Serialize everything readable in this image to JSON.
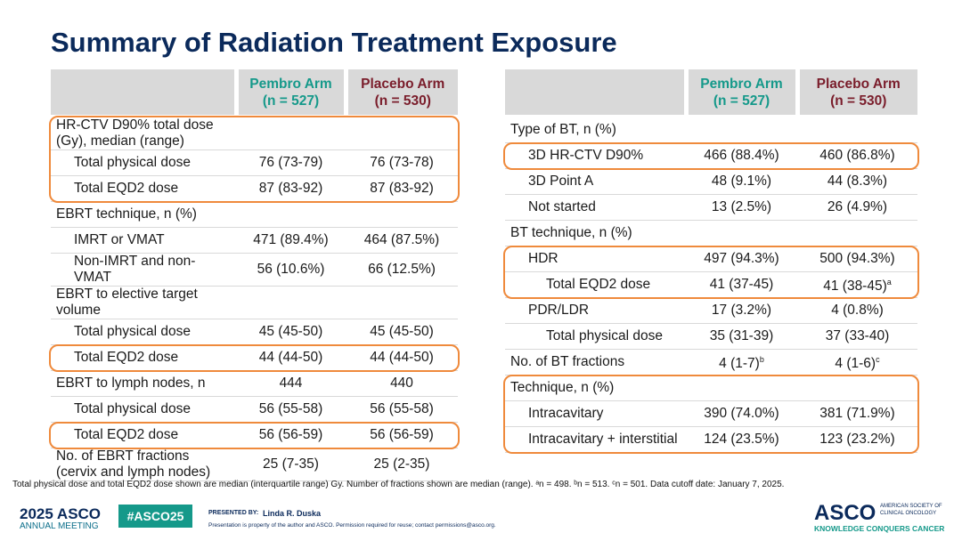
{
  "title": "Summary of Radiation Treatment Exposure",
  "tables": [
    {
      "columns": [
        {
          "name": "Pembro Arm",
          "n": "(n = 527)"
        },
        {
          "name": "Placebo Arm",
          "n": "(n = 530)"
        }
      ],
      "rows": [
        {
          "label": "HR-CTV D90% total dose (Gy), median (range)",
          "highlight": true,
          "rows": [
            {
              "label": "Total physical dose",
              "values": [
                "76 (73-79)",
                "76 (73-78)"
              ]
            },
            {
              "label": "Total EQD2 dose",
              "values": [
                "87 (83-92)",
                "87 (83-92)"
              ]
            }
          ]
        },
        {
          "label": "EBRT technique, n (%)",
          "rows": [
            {
              "label": "IMRT or VMAT",
              "values": [
                "471 (89.4%)",
                "464 (87.5%)"
              ]
            },
            {
              "label": "Non-IMRT and non-VMAT",
              "values": [
                "56 (10.6%)",
                "66 (12.5%)"
              ]
            }
          ]
        },
        {
          "label": "EBRT to elective target volume",
          "rows": [
            {
              "label": "Total physical dose",
              "values": [
                "45 (45-50)",
                "45 (45-50)"
              ]
            },
            {
              "label": "Total EQD2 dose",
              "values": [
                "44 (44-50)",
                "44 (44-50)"
              ],
              "highlight": true
            }
          ]
        },
        {
          "label": "EBRT to lymph nodes, n",
          "values": [
            "444",
            "440"
          ],
          "rows": [
            {
              "label": "Total physical dose",
              "values": [
                "56 (55-58)",
                "56 (55-58)"
              ]
            },
            {
              "label": "Total EQD2 dose",
              "values": [
                "56 (56-59)",
                "56 (56-59)"
              ],
              "highlight": true
            }
          ]
        },
        {
          "label": "No. of EBRT fractions (cervix and lymph nodes)",
          "values": [
            "25 (7-35)",
            "25 (2-35)"
          ]
        }
      ]
    },
    {
      "columns": [
        {
          "name": "Pembro Arm",
          "n": "(n = 527)"
        },
        {
          "name": "Placebo Arm",
          "n": "(n = 530)"
        }
      ],
      "rows": [
        {
          "label": "Type of BT, n (%)",
          "rows": [
            {
              "label": "3D HR-CTV D90%",
              "values": [
                "466 (88.4%)",
                "460 (86.8%)"
              ],
              "highlight": true
            },
            {
              "label": "3D Point A",
              "values": [
                "48 (9.1%)",
                "44 (8.3%)"
              ]
            },
            {
              "label": "Not started",
              "values": [
                "13 (2.5%)",
                "26 (4.9%)"
              ]
            }
          ]
        },
        {
          "label": "BT technique, n (%)",
          "rows": [
            {
              "label": "HDR",
              "values": [
                "497 (94.3%)",
                "500 (94.3%)"
              ],
              "highlight": true,
              "rows": [
                {
                  "label": "Total EQD2 dose",
                  "values": [
                    "41 (37-45)",
                    {
                      "text": "41 (38-45)",
                      "sup": "a"
                    }
                  ]
                }
              ]
            },
            {
              "label": "PDR/LDR",
              "values": [
                "17 (3.2%)",
                "4 (0.8%)"
              ],
              "rows": [
                {
                  "label": "Total physical dose",
                  "values": [
                    "35 (31-39)",
                    "37 (33-40)"
                  ]
                }
              ]
            }
          ]
        },
        {
          "label": "No. of BT fractions",
          "values": [
            {
              "text": "4 (1-7)",
              "sup": "b"
            },
            {
              "text": "4 (1-6)",
              "sup": "c"
            }
          ]
        },
        {
          "label": "Technique, n (%)",
          "highlight": true,
          "rows": [
            {
              "label": "Intracavitary",
              "values": [
                "390 (74.0%)",
                "381 (71.9%)"
              ]
            },
            {
              "label": "Intracavitary + interstitial",
              "values": [
                "124 (23.5%)",
                "123 (23.2%)"
              ]
            }
          ]
        }
      ]
    }
  ],
  "footnote": "Total physical dose and total EQD2 dose shown are median (interquartile range) Gy. Number of fractions shown are median (range). ᵃn = 498. ᵇn = 513. ᶜn = 501. Data cutoff date: January 7, 2025.",
  "footer": {
    "meeting_year": "2025 ASCO",
    "meeting": "ANNUAL MEETING",
    "hashtag": "#ASCO25",
    "presented_by": "PRESENTED BY:",
    "presenter": "Linda R. Duska",
    "notice": "Presentation is property of the author and ASCO. Permission required for reuse; contact permissions@asco.org.",
    "logo": "ASCO",
    "society_1": "AMERICAN SOCIETY OF",
    "society_2": "CLINICAL ONCOLOGY",
    "tagline": "KNOWLEDGE CONQUERS CANCER"
  }
}
